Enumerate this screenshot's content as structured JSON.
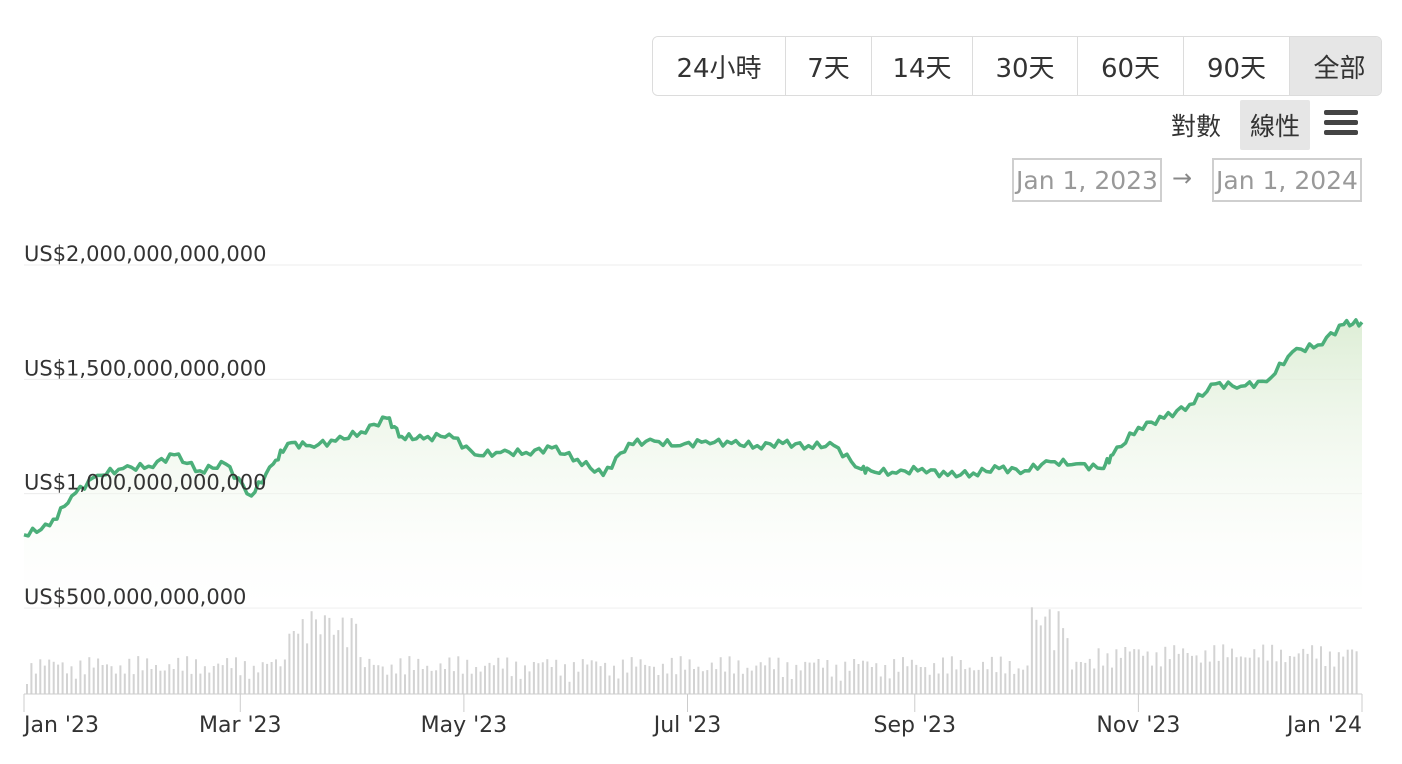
{
  "range_buttons": [
    {
      "label": "24小時",
      "active": false
    },
    {
      "label": "7天",
      "active": false
    },
    {
      "label": "14天",
      "active": false
    },
    {
      "label": "30天",
      "active": false
    },
    {
      "label": "60天",
      "active": false
    },
    {
      "label": "90天",
      "active": false
    },
    {
      "label": "全部",
      "active": true
    }
  ],
  "scale": {
    "log_label": "對數",
    "linear_label": "線性",
    "active": "linear"
  },
  "date_range": {
    "from": "Jan 1, 2023",
    "to": "Jan 1, 2024",
    "arrow": "→"
  },
  "icons": {
    "menu": "hamburger-menu-icon"
  },
  "colors": {
    "line": "#4caf7a",
    "fill_top": "#dcedd4",
    "bar": "#d3d3d3"
  },
  "chart_data": {
    "type": "area",
    "y_ticks": [
      {
        "value": 2000000000000,
        "label": "US$2,000,000,000,000"
      },
      {
        "value": 1500000000000,
        "label": "US$1,500,000,000,000"
      },
      {
        "value": 1000000000000,
        "label": "US$1,000,000,000,000"
      },
      {
        "value": 500000000000,
        "label": "US$500,000,000,000"
      }
    ],
    "ylim": [
      500000000000,
      2000000000000
    ],
    "x_ticks": [
      "Jan '23",
      "Mar '23",
      "May '23",
      "Jul '23",
      "Sep '23",
      "Nov '23",
      "Jan '24"
    ],
    "xlim": [
      "2023-01-01",
      "2024-01-01"
    ],
    "series": [
      {
        "x": [
          "2023-01-01",
          "2023-01-08",
          "2023-01-14",
          "2023-01-21",
          "2023-01-28",
          "2023-02-04",
          "2023-02-11",
          "2023-02-18",
          "2023-02-25",
          "2023-03-04",
          "2023-03-10",
          "2023-03-14",
          "2023-03-20",
          "2023-03-27",
          "2023-04-03",
          "2023-04-10",
          "2023-04-14",
          "2023-04-20",
          "2023-04-27",
          "2023-05-04",
          "2023-05-11",
          "2023-05-18",
          "2023-05-25",
          "2023-06-01",
          "2023-06-08",
          "2023-06-15",
          "2023-06-22",
          "2023-06-29",
          "2023-07-06",
          "2023-07-13",
          "2023-07-20",
          "2023-07-27",
          "2023-08-03",
          "2023-08-10",
          "2023-08-17",
          "2023-08-20",
          "2023-08-27",
          "2023-09-03",
          "2023-09-10",
          "2023-09-17",
          "2023-09-24",
          "2023-10-01",
          "2023-10-08",
          "2023-10-15",
          "2023-10-22",
          "2023-10-25",
          "2023-11-01",
          "2023-11-08",
          "2023-11-15",
          "2023-11-22",
          "2023-11-29",
          "2023-12-06",
          "2023-12-13",
          "2023-12-20",
          "2023-12-27",
          "2024-01-01"
        ],
        "values": [
          820,
          860,
          990,
          1080,
          1110,
          1120,
          1170,
          1100,
          1130,
          990,
          1130,
          1220,
          1210,
          1230,
          1270,
          1330,
          1250,
          1240,
          1260,
          1170,
          1180,
          1180,
          1200,
          1150,
          1080,
          1220,
          1230,
          1210,
          1230,
          1220,
          1210,
          1220,
          1210,
          1210,
          1110,
          1100,
          1090,
          1110,
          1080,
          1090,
          1110,
          1100,
          1140,
          1130,
          1110,
          1170,
          1290,
          1330,
          1390,
          1480,
          1470,
          1490,
          1620,
          1650,
          1740,
          1750
        ]
      }
    ]
  }
}
